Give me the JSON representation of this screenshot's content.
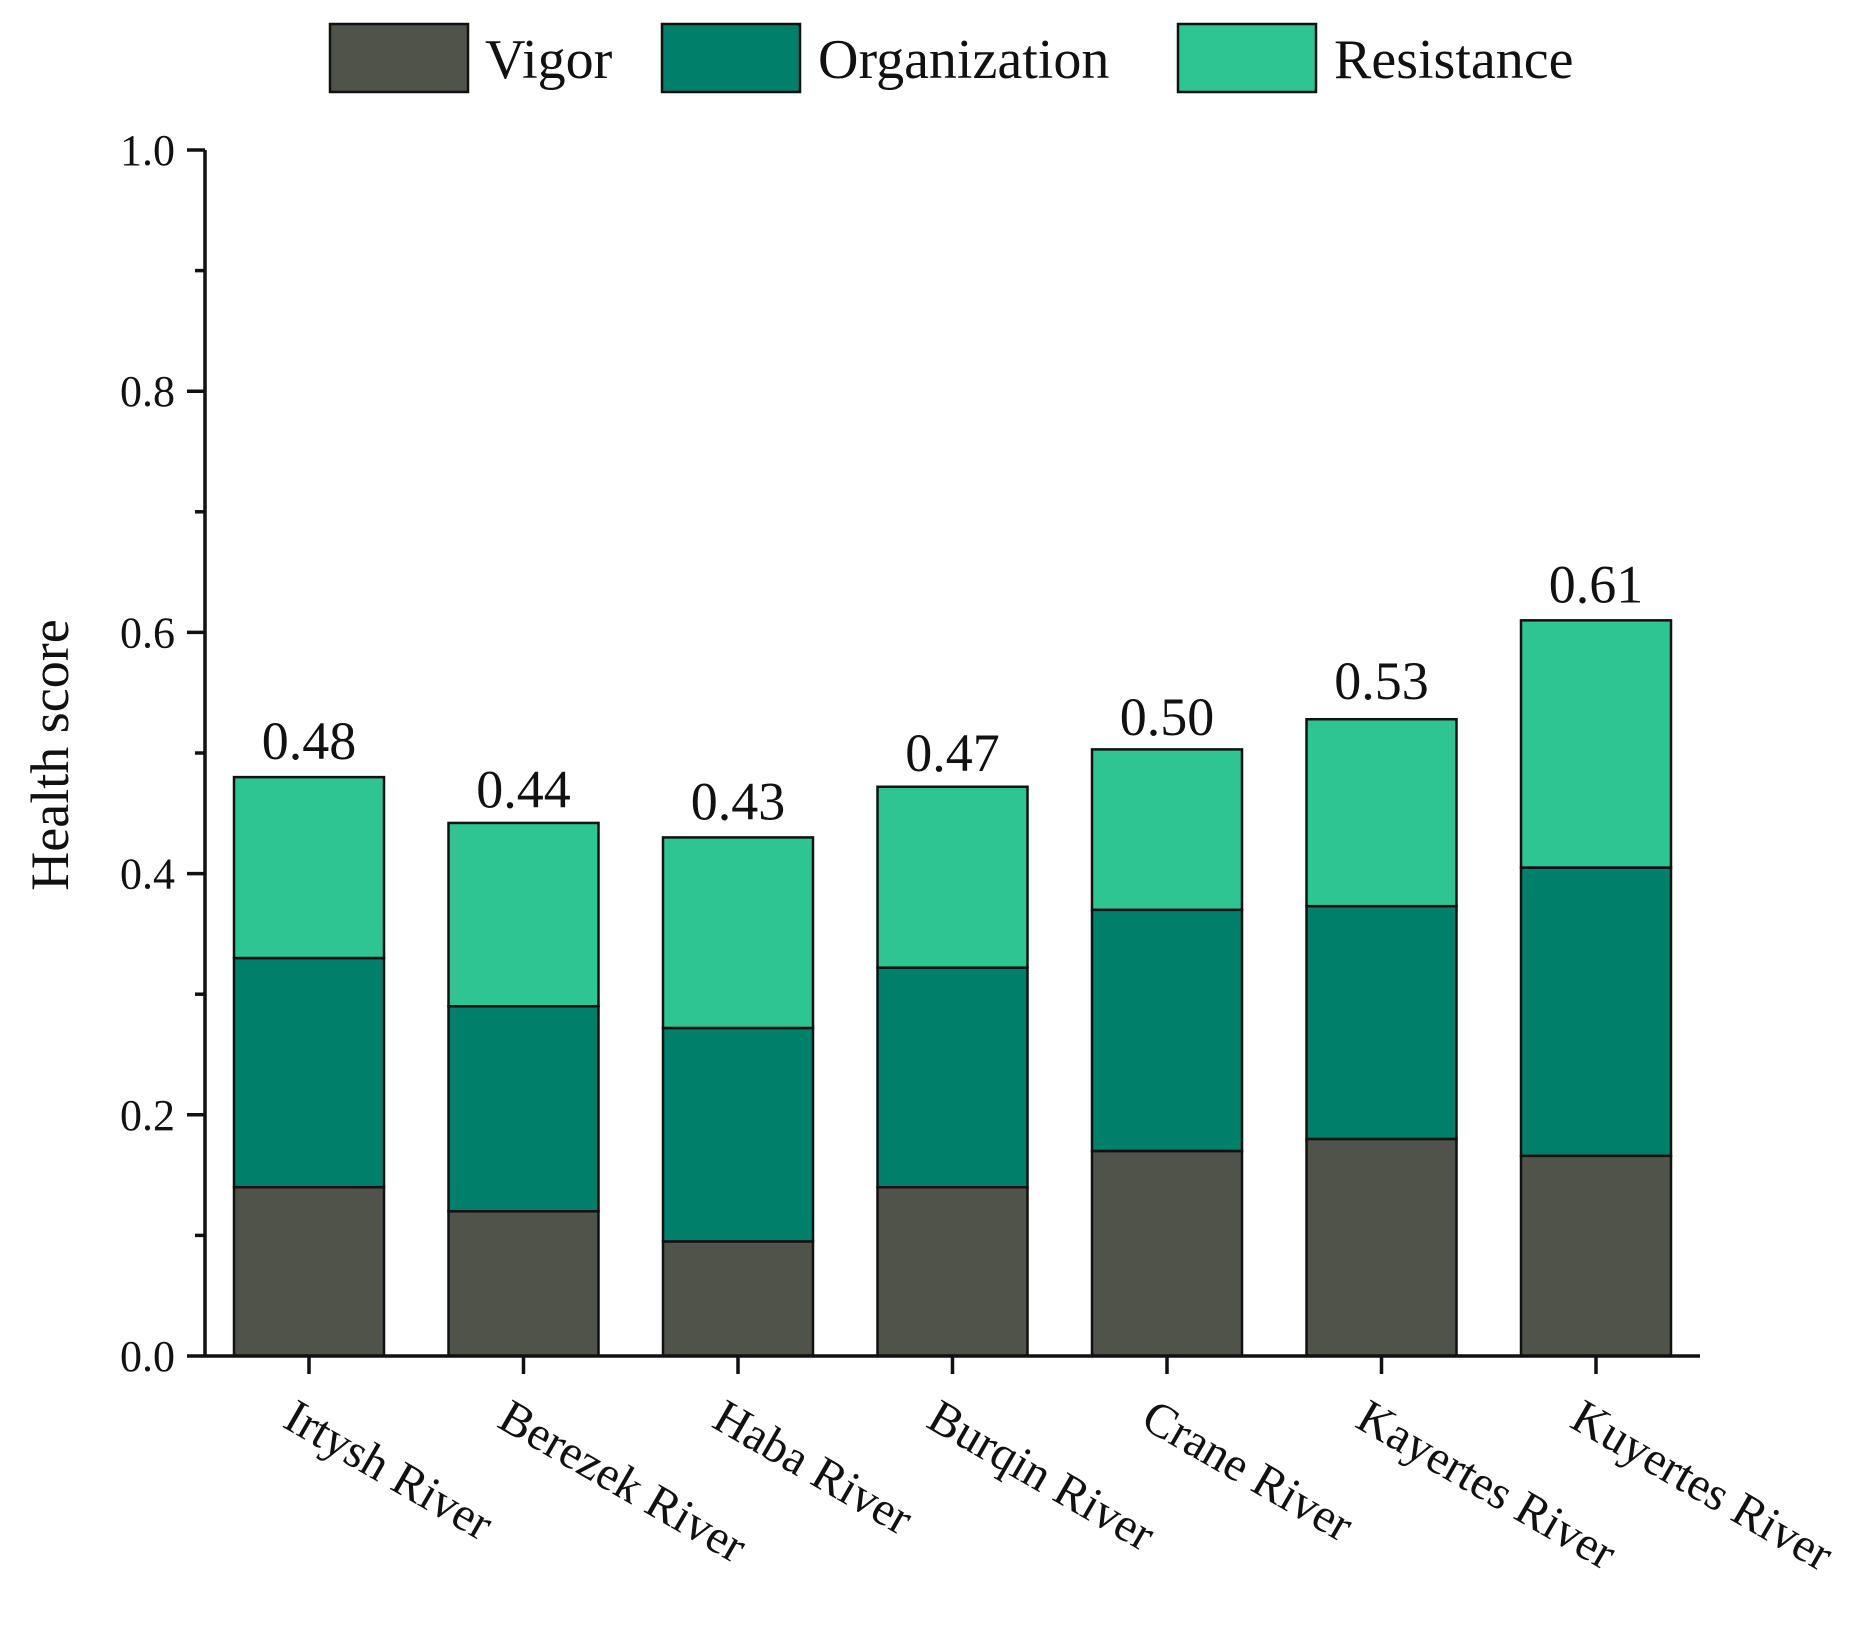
{
  "chart_data": {
    "type": "bar",
    "stacked": true,
    "title": "",
    "xlabel": "",
    "ylabel": "Health score",
    "ylim": [
      0,
      1.0
    ],
    "yticks": [
      "0.0",
      "0.2",
      "0.4",
      "0.6",
      "0.8",
      "1.0"
    ],
    "ytick_values": [
      0,
      0.2,
      0.4,
      0.6,
      0.8,
      1.0
    ],
    "grid": false,
    "legend_position": "top",
    "categories": [
      "Irtysh River",
      "Berezek River",
      "Haba River",
      "Burqin River",
      "Crane River",
      "Kayertes River",
      "Kuyertes River"
    ],
    "series": [
      {
        "name": "Vigor",
        "color": "#4f5349",
        "values": [
          0.14,
          0.12,
          0.095,
          0.14,
          0.17,
          0.18,
          0.166
        ]
      },
      {
        "name": "Organization",
        "color": "#007f6a",
        "values": [
          0.19,
          0.17,
          0.177,
          0.182,
          0.2,
          0.193,
          0.239
        ]
      },
      {
        "name": "Resistance",
        "color": "#2ec593",
        "values": [
          0.15,
          0.152,
          0.158,
          0.15,
          0.133,
          0.155,
          0.205
        ]
      }
    ],
    "totals": [
      0.48,
      0.44,
      0.43,
      0.47,
      0.5,
      0.53,
      0.61
    ],
    "total_labels": [
      "0.48",
      "0.44",
      "0.43",
      "0.47",
      "0.50",
      "0.53",
      "0.61"
    ]
  }
}
